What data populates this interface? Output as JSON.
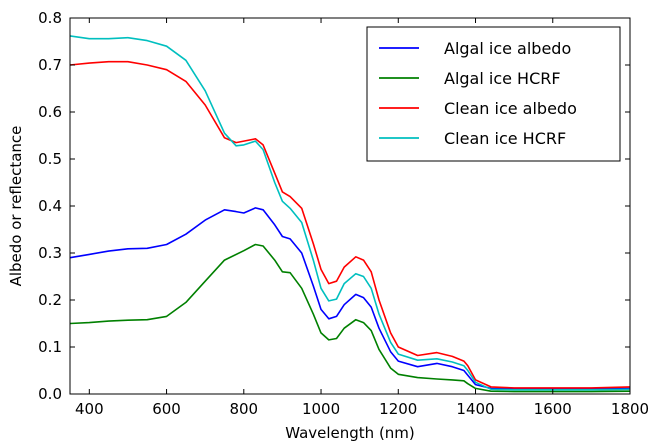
{
  "chart_data": {
    "type": "line",
    "xlabel": "Wavelength (nm)",
    "ylabel": "Albedo or reflectance",
    "xlim": [
      350,
      1800
    ],
    "ylim": [
      0.0,
      0.8
    ],
    "x_ticks": [
      400,
      600,
      800,
      1000,
      1200,
      1400,
      1600,
      1800
    ],
    "x_tick_labels": [
      "400",
      "600",
      "800",
      "1000",
      "1200",
      "1400",
      "1600",
      "1800"
    ],
    "y_ticks": [
      0.0,
      0.1,
      0.2,
      0.3,
      0.4,
      0.5,
      0.6,
      0.7,
      0.8
    ],
    "y_tick_labels": [
      "0.0",
      "0.1",
      "0.2",
      "0.3",
      "0.4",
      "0.5",
      "0.6",
      "0.7",
      "0.8"
    ],
    "grid": false,
    "legend_position": "top-right",
    "series": [
      {
        "name": "Algal ice albedo",
        "color": "#0000ff",
        "points": [
          [
            350,
            0.29
          ],
          [
            400,
            0.297
          ],
          [
            450,
            0.304
          ],
          [
            500,
            0.309
          ],
          [
            550,
            0.31
          ],
          [
            600,
            0.318
          ],
          [
            650,
            0.34
          ],
          [
            700,
            0.37
          ],
          [
            750,
            0.392
          ],
          [
            780,
            0.388
          ],
          [
            800,
            0.385
          ],
          [
            830,
            0.396
          ],
          [
            850,
            0.392
          ],
          [
            880,
            0.36
          ],
          [
            900,
            0.335
          ],
          [
            920,
            0.33
          ],
          [
            950,
            0.3
          ],
          [
            980,
            0.23
          ],
          [
            1000,
            0.18
          ],
          [
            1020,
            0.16
          ],
          [
            1040,
            0.165
          ],
          [
            1060,
            0.19
          ],
          [
            1090,
            0.212
          ],
          [
            1110,
            0.205
          ],
          [
            1130,
            0.185
          ],
          [
            1150,
            0.14
          ],
          [
            1180,
            0.09
          ],
          [
            1200,
            0.07
          ],
          [
            1250,
            0.058
          ],
          [
            1300,
            0.065
          ],
          [
            1340,
            0.058
          ],
          [
            1370,
            0.05
          ],
          [
            1380,
            0.04
          ],
          [
            1400,
            0.02
          ],
          [
            1440,
            0.012
          ],
          [
            1500,
            0.011
          ],
          [
            1600,
            0.011
          ],
          [
            1700,
            0.011
          ],
          [
            1800,
            0.012
          ]
        ]
      },
      {
        "name": "Algal ice HCRF",
        "color": "#008000",
        "points": [
          [
            350,
            0.15
          ],
          [
            400,
            0.152
          ],
          [
            450,
            0.155
          ],
          [
            500,
            0.157
          ],
          [
            550,
            0.158
          ],
          [
            600,
            0.165
          ],
          [
            650,
            0.195
          ],
          [
            700,
            0.24
          ],
          [
            750,
            0.285
          ],
          [
            800,
            0.305
          ],
          [
            830,
            0.318
          ],
          [
            850,
            0.315
          ],
          [
            880,
            0.285
          ],
          [
            900,
            0.26
          ],
          [
            920,
            0.258
          ],
          [
            950,
            0.225
          ],
          [
            980,
            0.17
          ],
          [
            1000,
            0.13
          ],
          [
            1020,
            0.115
          ],
          [
            1040,
            0.118
          ],
          [
            1060,
            0.14
          ],
          [
            1090,
            0.158
          ],
          [
            1110,
            0.152
          ],
          [
            1130,
            0.135
          ],
          [
            1150,
            0.095
          ],
          [
            1180,
            0.055
          ],
          [
            1200,
            0.042
          ],
          [
            1250,
            0.035
          ],
          [
            1300,
            0.032
          ],
          [
            1340,
            0.03
          ],
          [
            1370,
            0.028
          ],
          [
            1380,
            0.022
          ],
          [
            1400,
            0.012
          ],
          [
            1440,
            0.006
          ],
          [
            1500,
            0.005
          ],
          [
            1600,
            0.005
          ],
          [
            1700,
            0.005
          ],
          [
            1800,
            0.006
          ]
        ]
      },
      {
        "name": "Clean ice albedo",
        "color": "#ff0000",
        "points": [
          [
            350,
            0.7
          ],
          [
            400,
            0.704
          ],
          [
            450,
            0.707
          ],
          [
            500,
            0.707
          ],
          [
            550,
            0.7
          ],
          [
            600,
            0.69
          ],
          [
            650,
            0.665
          ],
          [
            700,
            0.615
          ],
          [
            750,
            0.545
          ],
          [
            780,
            0.535
          ],
          [
            800,
            0.538
          ],
          [
            830,
            0.543
          ],
          [
            850,
            0.53
          ],
          [
            880,
            0.47
          ],
          [
            900,
            0.43
          ],
          [
            920,
            0.42
          ],
          [
            950,
            0.395
          ],
          [
            980,
            0.32
          ],
          [
            1000,
            0.265
          ],
          [
            1020,
            0.235
          ],
          [
            1040,
            0.24
          ],
          [
            1060,
            0.27
          ],
          [
            1090,
            0.292
          ],
          [
            1110,
            0.285
          ],
          [
            1130,
            0.26
          ],
          [
            1150,
            0.2
          ],
          [
            1180,
            0.13
          ],
          [
            1200,
            0.1
          ],
          [
            1250,
            0.082
          ],
          [
            1300,
            0.088
          ],
          [
            1340,
            0.08
          ],
          [
            1370,
            0.07
          ],
          [
            1380,
            0.06
          ],
          [
            1400,
            0.03
          ],
          [
            1440,
            0.015
          ],
          [
            1500,
            0.013
          ],
          [
            1600,
            0.013
          ],
          [
            1700,
            0.013
          ],
          [
            1800,
            0.015
          ]
        ]
      },
      {
        "name": "Clean ice HCRF",
        "color": "#00bfbf",
        "points": [
          [
            350,
            0.762
          ],
          [
            400,
            0.756
          ],
          [
            450,
            0.756
          ],
          [
            500,
            0.758
          ],
          [
            550,
            0.752
          ],
          [
            600,
            0.74
          ],
          [
            650,
            0.71
          ],
          [
            700,
            0.645
          ],
          [
            750,
            0.555
          ],
          [
            780,
            0.528
          ],
          [
            800,
            0.53
          ],
          [
            830,
            0.538
          ],
          [
            850,
            0.52
          ],
          [
            880,
            0.45
          ],
          [
            900,
            0.41
          ],
          [
            920,
            0.395
          ],
          [
            950,
            0.365
          ],
          [
            980,
            0.285
          ],
          [
            1000,
            0.225
          ],
          [
            1020,
            0.198
          ],
          [
            1040,
            0.202
          ],
          [
            1060,
            0.235
          ],
          [
            1090,
            0.256
          ],
          [
            1110,
            0.25
          ],
          [
            1130,
            0.225
          ],
          [
            1150,
            0.17
          ],
          [
            1180,
            0.11
          ],
          [
            1200,
            0.085
          ],
          [
            1250,
            0.072
          ],
          [
            1300,
            0.075
          ],
          [
            1340,
            0.068
          ],
          [
            1370,
            0.06
          ],
          [
            1380,
            0.05
          ],
          [
            1400,
            0.025
          ],
          [
            1440,
            0.01
          ],
          [
            1500,
            0.009
          ],
          [
            1600,
            0.009
          ],
          [
            1700,
            0.009
          ],
          [
            1800,
            0.01
          ]
        ]
      }
    ]
  }
}
